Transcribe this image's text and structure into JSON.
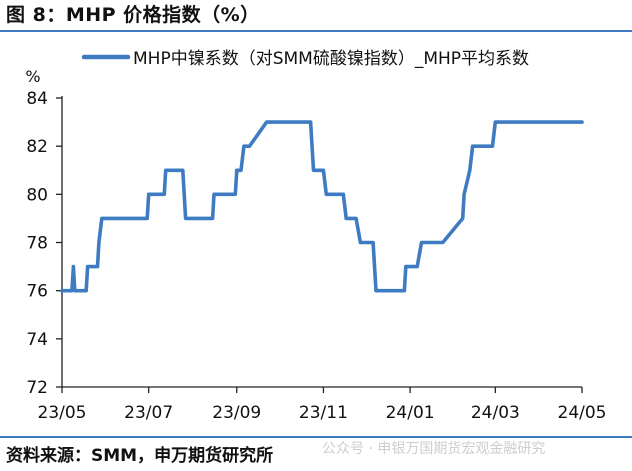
{
  "title": "图 8：MHP 价格指数（%）",
  "source": "资料来源：SMM，申万期货研究所",
  "watermark": "公众号 · 申银万国期货宏观金融研究",
  "colors": {
    "series": "#3f7bc0",
    "rule": "#3f7bc0",
    "axis": "#222222"
  },
  "chart_data": {
    "type": "line",
    "ylabel": "%",
    "ylim": [
      72,
      84
    ],
    "yticks": [
      72,
      74,
      76,
      78,
      80,
      82,
      84
    ],
    "xlim": [
      "2023-05-01",
      "2024-05-31"
    ],
    "xticks": [
      {
        "label": "23/05",
        "date": "2023-05-01"
      },
      {
        "label": "23/07",
        "date": "2023-07-01"
      },
      {
        "label": "23/09",
        "date": "2023-09-01"
      },
      {
        "label": "23/11",
        "date": "2023-11-01"
      },
      {
        "label": "24/01",
        "date": "2024-01-01"
      },
      {
        "label": "24/03",
        "date": "2024-03-01"
      },
      {
        "label": "24/05",
        "date": "2024-05-01"
      }
    ],
    "grid": false,
    "legend": "top",
    "series": [
      {
        "name": "MHP中镍系数（对SMM硫酸镍指数）_MHP平均系数",
        "color": "#3f7bc0",
        "points": [
          [
            "2023-05-01",
            76
          ],
          [
            "2023-05-08",
            76
          ],
          [
            "2023-05-09",
            77
          ],
          [
            "2023-05-10",
            76
          ],
          [
            "2023-05-18",
            76
          ],
          [
            "2023-05-19",
            77
          ],
          [
            "2023-05-26",
            77
          ],
          [
            "2023-05-27",
            78
          ],
          [
            "2023-05-29",
            79
          ],
          [
            "2023-06-30",
            79
          ],
          [
            "2023-07-01",
            80
          ],
          [
            "2023-07-12",
            80
          ],
          [
            "2023-07-13",
            81
          ],
          [
            "2023-07-25",
            81
          ],
          [
            "2023-07-26",
            80
          ],
          [
            "2023-07-27",
            79
          ],
          [
            "2023-08-15",
            79
          ],
          [
            "2023-08-16",
            80
          ],
          [
            "2023-08-31",
            80
          ],
          [
            "2023-09-01",
            81
          ],
          [
            "2023-09-04",
            81
          ],
          [
            "2023-09-06",
            82
          ],
          [
            "2023-09-10",
            82
          ],
          [
            "2023-09-22",
            83
          ],
          [
            "2023-10-23",
            83
          ],
          [
            "2023-10-25",
            81
          ],
          [
            "2023-11-01",
            81
          ],
          [
            "2023-11-03",
            80
          ],
          [
            "2023-11-15",
            80
          ],
          [
            "2023-11-17",
            79
          ],
          [
            "2023-11-24",
            79
          ],
          [
            "2023-11-27",
            78
          ],
          [
            "2023-12-06",
            78
          ],
          [
            "2023-12-08",
            76
          ],
          [
            "2023-12-28",
            76
          ],
          [
            "2023-12-29",
            77
          ],
          [
            "2024-01-06",
            77
          ],
          [
            "2024-01-09",
            78
          ],
          [
            "2024-01-24",
            78
          ],
          [
            "2024-02-07",
            79
          ],
          [
            "2024-02-08",
            80
          ],
          [
            "2024-02-12",
            81
          ],
          [
            "2024-02-14",
            82
          ],
          [
            "2024-02-28",
            82
          ],
          [
            "2024-03-01",
            83
          ],
          [
            "2024-05-01",
            83
          ]
        ]
      }
    ]
  }
}
